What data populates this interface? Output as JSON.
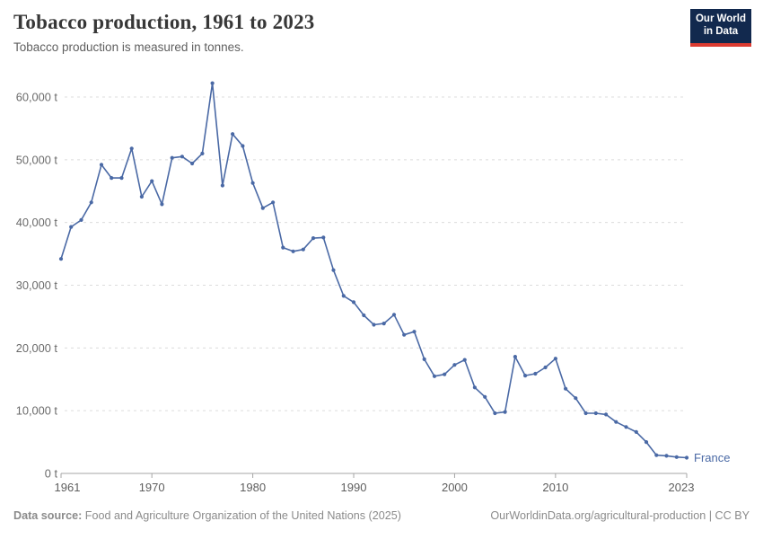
{
  "header": {
    "title": "Tobacco production, 1961 to 2023",
    "subtitle": "Tobacco production is measured in tonnes.",
    "logo": {
      "line1": "Our World",
      "line2": "in Data",
      "bg_color": "#12294e",
      "bar_color": "#dc3b31"
    }
  },
  "chart_data": {
    "type": "line",
    "title": "Tobacco production, 1961 to 2023",
    "xlabel": "",
    "ylabel": "tonnes",
    "xlim": [
      1961,
      2023
    ],
    "ylim": [
      0,
      60000
    ],
    "grid": "horizontal-dashed",
    "legend_position": "end-of-line",
    "xticks": [
      1961,
      1970,
      1980,
      1990,
      2000,
      2010,
      2023
    ],
    "yticks": [
      0,
      10000,
      20000,
      30000,
      40000,
      50000,
      60000
    ],
    "ytick_suffix": " t",
    "x": [
      1961,
      1962,
      1963,
      1964,
      1965,
      1966,
      1967,
      1968,
      1969,
      1970,
      1971,
      1972,
      1973,
      1974,
      1975,
      1976,
      1977,
      1978,
      1979,
      1980,
      1981,
      1982,
      1983,
      1984,
      1985,
      1986,
      1987,
      1988,
      1989,
      1990,
      1991,
      1992,
      1993,
      1994,
      1995,
      1996,
      1997,
      1998,
      1999,
      2000,
      2001,
      2002,
      2003,
      2004,
      2005,
      2006,
      2007,
      2008,
      2009,
      2010,
      2011,
      2012,
      2013,
      2014,
      2015,
      2016,
      2017,
      2018,
      2019,
      2020,
      2021,
      2022,
      2023
    ],
    "series": [
      {
        "name": "France",
        "color": "#4a69a5",
        "values": [
          34200,
          39300,
          40400,
          43200,
          49200,
          47100,
          47100,
          51800,
          44100,
          46600,
          42900,
          50300,
          50500,
          49400,
          51000,
          62200,
          45900,
          54100,
          52200,
          46300,
          42300,
          43200,
          36000,
          35400,
          35700,
          37500,
          37600,
          32400,
          28300,
          27300,
          25200,
          23700,
          23900,
          25300,
          22100,
          22600,
          18200,
          15500,
          15800,
          17300,
          18100,
          13700,
          12200,
          9600,
          9800,
          18600,
          15600,
          15900,
          16900,
          18300,
          13500,
          12000,
          9600,
          9600,
          9400,
          8200,
          7400,
          6600,
          5000,
          2900,
          2800,
          2600,
          2500
        ]
      }
    ],
    "colors": {
      "gridline": "#dcdcdc",
      "axis": "#a5a5a5",
      "y_tick_label": "#6b6b6b",
      "x_tick_label": "#5e5e5e"
    }
  },
  "footer": {
    "source_label": "Data source:",
    "source_text": " Food and Agriculture Organization of the United Nations (2025)",
    "license_text": "OurWorldinData.org/agricultural-production | CC BY"
  }
}
